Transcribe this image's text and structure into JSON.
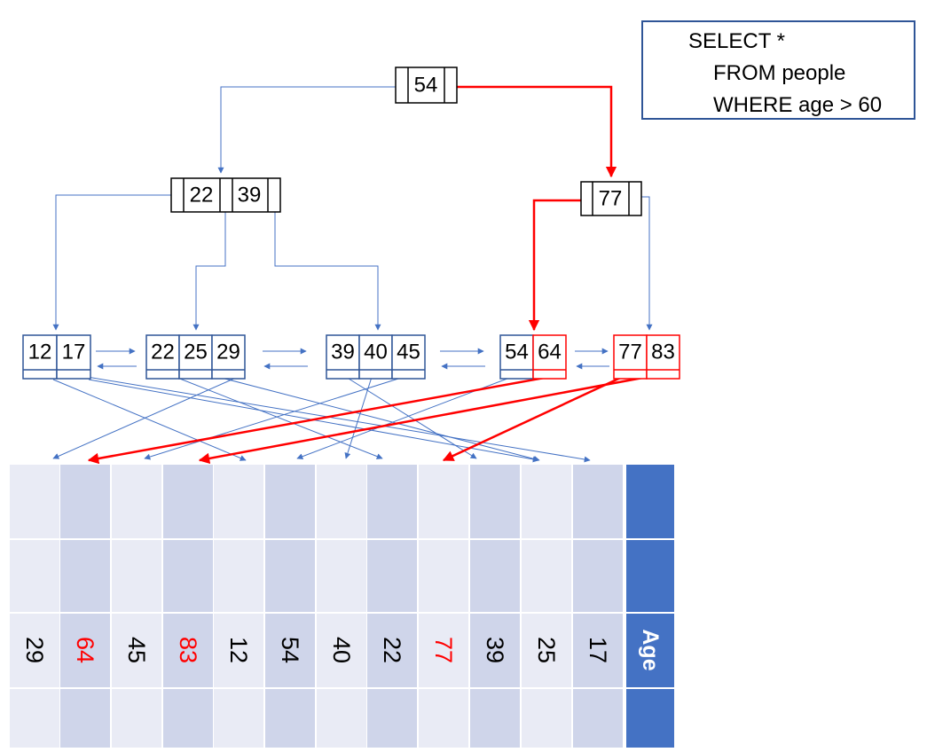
{
  "query": {
    "lines": [
      "SELECT *",
      "FROM people",
      "WHERE age > 60"
    ]
  },
  "colors": {
    "node_border": "#000000",
    "leaf_border": "#2F5597",
    "highlight": "#FF0000",
    "pointer_line": "#4472C4",
    "column_light": "#E9EBF5",
    "column_dark": "#CFD5EA",
    "header": "#4472C4",
    "header_text": "#FFFFFF"
  },
  "tree": {
    "root": {
      "keys": [
        "54"
      ]
    },
    "internal": [
      {
        "keys": [
          "22",
          "39"
        ]
      },
      {
        "keys": [
          "77"
        ]
      }
    ],
    "leaves": [
      {
        "keys": [
          "12",
          "17"
        ],
        "highlight": [
          false,
          false
        ]
      },
      {
        "keys": [
          "22",
          "25",
          "29"
        ],
        "highlight": [
          false,
          false,
          false
        ]
      },
      {
        "keys": [
          "39",
          "40",
          "45"
        ],
        "highlight": [
          false,
          false,
          false
        ]
      },
      {
        "keys": [
          "54",
          "64"
        ],
        "highlight": [
          false,
          true
        ]
      },
      {
        "keys": [
          "77",
          "83"
        ],
        "highlight": [
          true,
          true
        ]
      }
    ]
  },
  "table": {
    "header": "Age",
    "ages": [
      "29",
      "64",
      "45",
      "83",
      "12",
      "54",
      "40",
      "22",
      "77",
      "39",
      "25",
      "17"
    ],
    "matches": [
      false,
      true,
      false,
      true,
      false,
      false,
      false,
      false,
      true,
      false,
      false,
      false
    ]
  }
}
